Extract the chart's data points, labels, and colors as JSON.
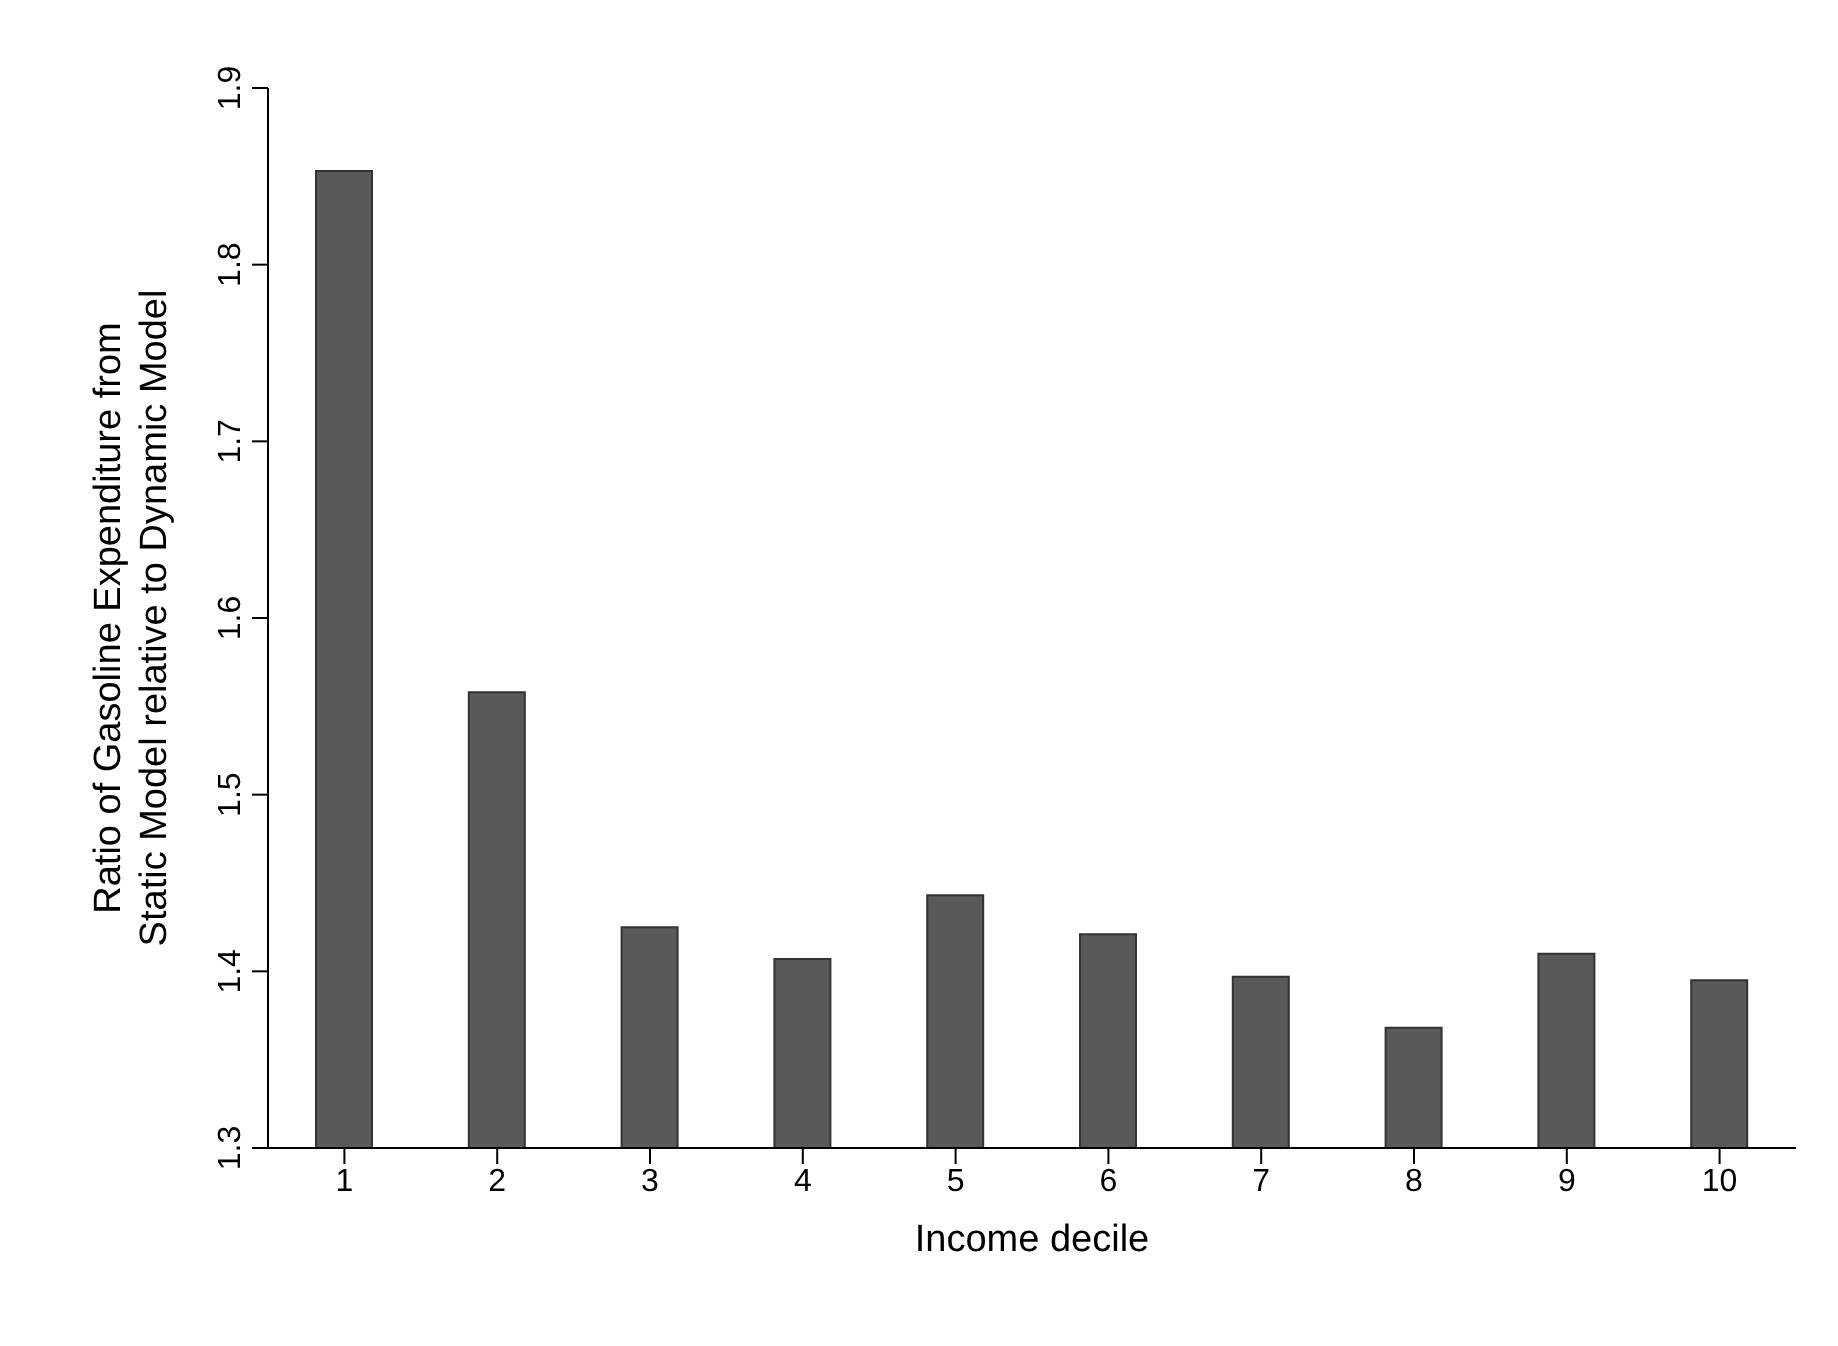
{
  "chart_data": {
    "type": "bar",
    "xlabel": "Income decile",
    "ylabel": "Ratio of Gasoline Expenditure from\nStatic Model relative to Dynamic Model",
    "categories": [
      "1",
      "2",
      "3",
      "4",
      "5",
      "6",
      "7",
      "8",
      "9",
      "10"
    ],
    "values": [
      1.853,
      1.558,
      1.425,
      1.407,
      1.443,
      1.421,
      1.397,
      1.368,
      1.41,
      1.395
    ],
    "color": "#595959",
    "ylim": [
      1.3,
      1.9
    ],
    "yticks": [
      1.3,
      1.4,
      1.5,
      1.6,
      1.7,
      1.8,
      1.9
    ],
    "grid": false
  }
}
